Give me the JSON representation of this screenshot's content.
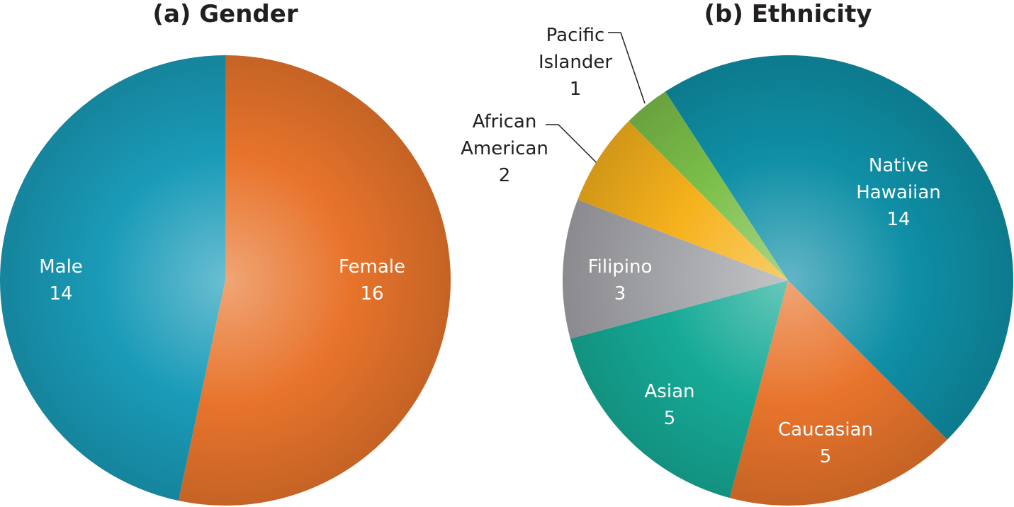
{
  "chart_data": [
    {
      "type": "pie",
      "title": "(a) Gender",
      "categories": [
        "Female",
        "Male"
      ],
      "values": [
        16,
        14
      ],
      "colors": [
        "#e8742c",
        "#1a9bb8"
      ]
    },
    {
      "type": "pie",
      "title": "(b) Ethnicity",
      "categories": [
        "Native Hawaiian",
        "Caucasian",
        "Asian",
        "Filipino",
        "African American",
        "Pacific Islander"
      ],
      "values": [
        14,
        5,
        5,
        3,
        2,
        1
      ],
      "colors": [
        "#0f8fa6",
        "#e8742c",
        "#16aa96",
        "#a3a4a8",
        "#f6b21c",
        "#7cbf4a"
      ]
    }
  ]
}
